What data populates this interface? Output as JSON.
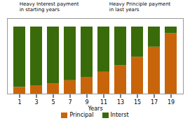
{
  "chart_data": {
    "type": "bar",
    "stacked": true,
    "categories": [
      "1",
      "3",
      "5",
      "7",
      "9",
      "11",
      "13",
      "15",
      "17",
      "19"
    ],
    "series": [
      {
        "name": "Principal",
        "color": "#C8650A",
        "values": [
          4,
          5,
          6,
          8,
          10,
          13,
          17,
          22,
          28,
          36
        ]
      },
      {
        "name": "Interst",
        "color": "#3A6B0A",
        "values": [
          36,
          35,
          34,
          32,
          30,
          27,
          23,
          18,
          12,
          4
        ]
      }
    ],
    "xlabel": "Years",
    "ylim": [
      0,
      45
    ],
    "tick_labels": "x",
    "legend": "bottom",
    "annotations": [
      "Heavy Interest payment\nin starting years",
      "Heavy Principle payment\nin last years"
    ]
  }
}
